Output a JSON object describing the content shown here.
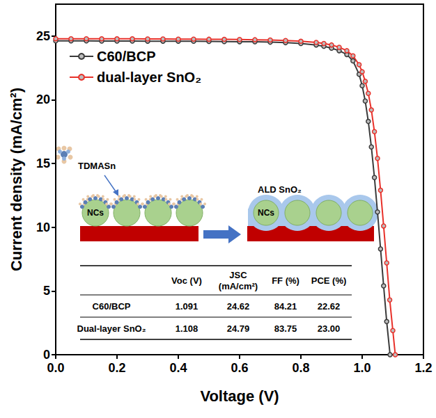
{
  "chart_data": {
    "type": "line",
    "xlabel": "Voltage (V)",
    "ylabel": "Current density (mA/cm²)",
    "xlim": [
      0,
      1.2
    ],
    "xticks": [
      {
        "value": 0,
        "label": "0.0"
      },
      0.2,
      0.4,
      0.6,
      0.8,
      {
        "value": 1,
        "label": "1.0"
      },
      1.2
    ],
    "ylim": [
      0,
      27.5
    ],
    "yticks": [
      0,
      5,
      10,
      15,
      20,
      25
    ],
    "grid": false,
    "legend": "upper left",
    "marker": "circle",
    "series": [
      {
        "name": "C60/BCP",
        "color": "#3a3a3a",
        "x": [
          0,
          0.05,
          0.1,
          0.15,
          0.2,
          0.25,
          0.3,
          0.35,
          0.4,
          0.45,
          0.5,
          0.55,
          0.6,
          0.65,
          0.7,
          0.75,
          0.8,
          0.85,
          0.875,
          0.9,
          0.925,
          0.95,
          0.97,
          0.99,
          1.0,
          1.01,
          1.02,
          1.03,
          1.04,
          1.05,
          1.06,
          1.07,
          1.08,
          1.091
        ],
        "values": [
          24.62,
          24.62,
          24.62,
          24.61,
          24.61,
          24.61,
          24.6,
          24.6,
          24.6,
          24.59,
          24.58,
          24.57,
          24.56,
          24.55,
          24.52,
          24.48,
          24.42,
          24.3,
          24.2,
          24.05,
          23.85,
          23.55,
          23.05,
          22.0,
          21.1,
          19.9,
          18.3,
          16.3,
          13.9,
          11.2,
          8.3,
          5.4,
          2.6,
          0
        ]
      },
      {
        "name": "dual-layer SnO₂",
        "color": "#e8312a",
        "x": [
          0,
          0.05,
          0.1,
          0.15,
          0.2,
          0.25,
          0.3,
          0.35,
          0.4,
          0.45,
          0.5,
          0.55,
          0.6,
          0.65,
          0.7,
          0.75,
          0.8,
          0.85,
          0.875,
          0.9,
          0.925,
          0.95,
          0.97,
          0.99,
          1.0,
          1.01,
          1.02,
          1.03,
          1.04,
          1.05,
          1.06,
          1.07,
          1.08,
          1.09,
          1.1,
          1.108
        ],
        "values": [
          24.79,
          24.79,
          24.79,
          24.78,
          24.78,
          24.78,
          24.77,
          24.77,
          24.76,
          24.76,
          24.75,
          24.74,
          24.73,
          24.71,
          24.69,
          24.65,
          24.59,
          24.5,
          24.42,
          24.3,
          24.12,
          23.85,
          23.45,
          22.75,
          22.2,
          21.45,
          20.5,
          19.2,
          17.5,
          15.4,
          12.9,
          10.1,
          7.2,
          4.3,
          1.9,
          0
        ]
      }
    ],
    "annotations": {
      "inset": {
        "precursor_label": "TDMASn",
        "coating_label": "ALD SnO₂",
        "particle_label": "NCs"
      },
      "table": {
        "header": [
          "",
          "Voc (V)",
          "JSC (mA/cm²)",
          "FF (%)",
          "PCE (%)"
        ],
        "rows": [
          [
            "C60/BCP",
            "1.091",
            "24.62",
            "84.21",
            "22.62"
          ],
          [
            "Dual-layer SnO₂",
            "1.108",
            "24.79",
            "83.75",
            "23.00"
          ]
        ]
      }
    }
  }
}
